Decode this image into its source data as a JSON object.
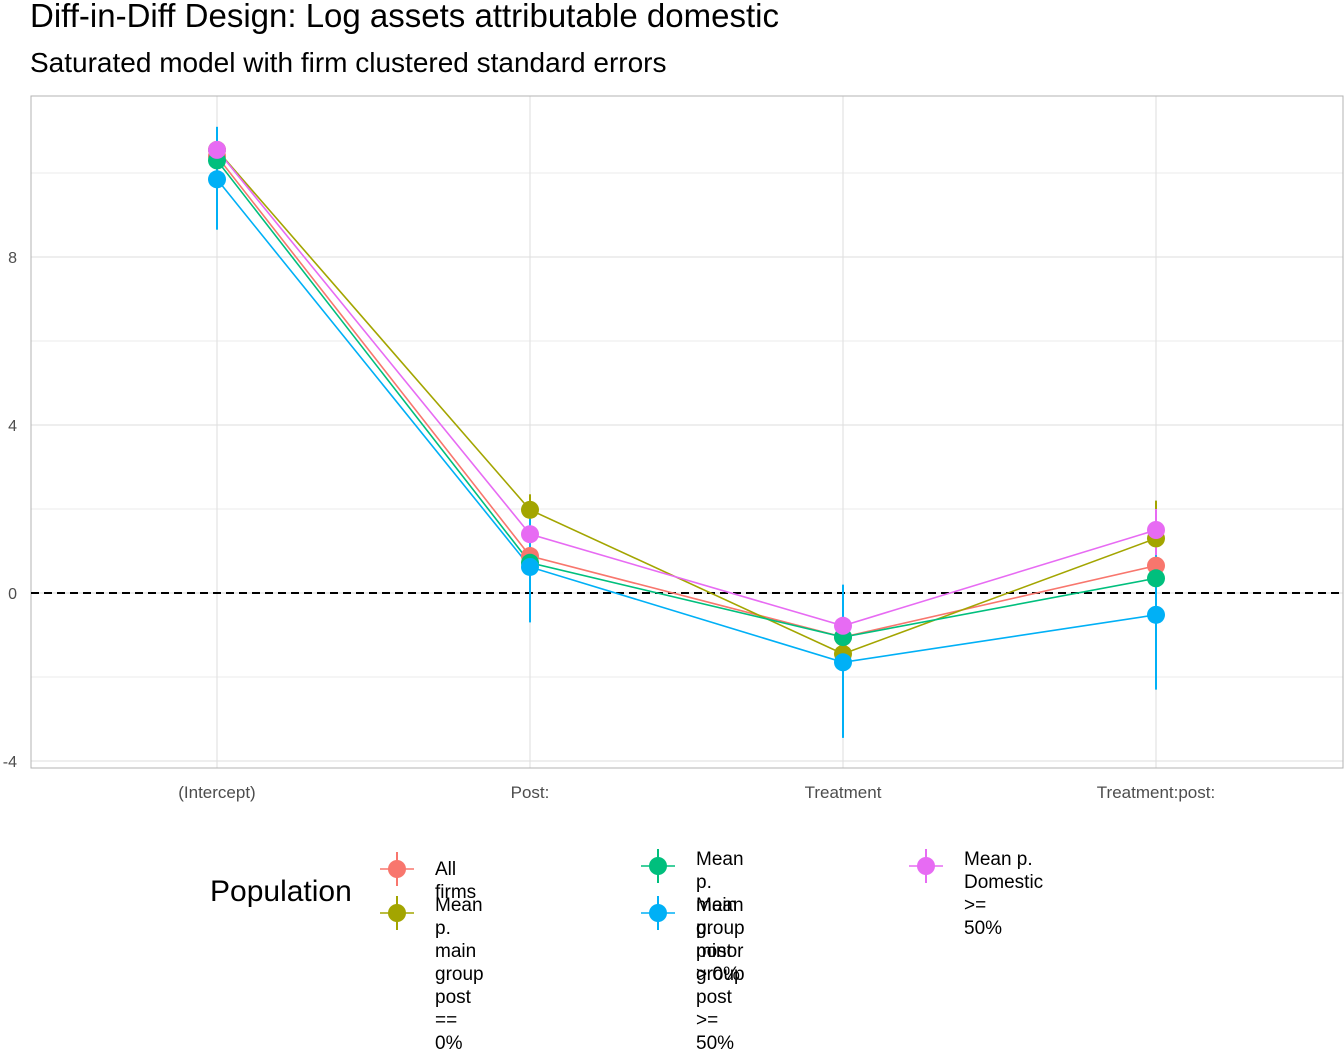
{
  "title": "Diff-in-Diff Design: Log assets attributable domestic",
  "subtitle": "Saturated model with firm clustered standard errors",
  "legend_title": "Population",
  "chart_data": {
    "type": "line",
    "categories": [
      "(Intercept)",
      "Post:",
      "Treatment",
      "Treatment:post:"
    ],
    "ylim": [
      -4.2,
      11.8
    ],
    "y_ticks": [
      -4,
      0,
      4,
      8
    ],
    "y_tick_labels": [
      "-4",
      "0",
      "4",
      "8"
    ],
    "reference_line": 0,
    "grid": true,
    "legend_position": "bottom",
    "series": [
      {
        "name": "All firms",
        "color": "#F8766D",
        "values": [
          10.4,
          0.88,
          -1.05,
          0.65
        ],
        "ci": [
          null,
          null,
          null,
          null
        ]
      },
      {
        "name": "Mean p. main group\npost == 0%",
        "color": "#A3A500",
        "values": [
          10.55,
          1.98,
          -1.45,
          1.3
        ],
        "ci": [
          null,
          [
            1.6,
            2.35
          ],
          null,
          [
            0.4,
            2.2
          ]
        ]
      },
      {
        "name": "Mean p. main group\npost > 0%",
        "color": "#00BF7D",
        "values": [
          10.3,
          0.72,
          -1.05,
          0.35
        ],
        "ci": [
          null,
          null,
          null,
          null
        ]
      },
      {
        "name": "Mean p. minor group\npost >= 50%",
        "color": "#00B0F6",
        "values": [
          9.85,
          0.62,
          -1.65,
          -0.52
        ],
        "ci": [
          [
            8.65,
            11.1
          ],
          [
            -0.7,
            1.9
          ],
          [
            -3.45,
            0.2
          ],
          [
            -2.3,
            1.25
          ]
        ]
      },
      {
        "name": "Mean p. Domestic >=\n50%",
        "color": "#E76BF3",
        "values": [
          10.55,
          1.4,
          -0.78,
          1.5
        ],
        "ci": [
          null,
          null,
          null,
          [
            0.9,
            2.0
          ]
        ]
      }
    ]
  }
}
